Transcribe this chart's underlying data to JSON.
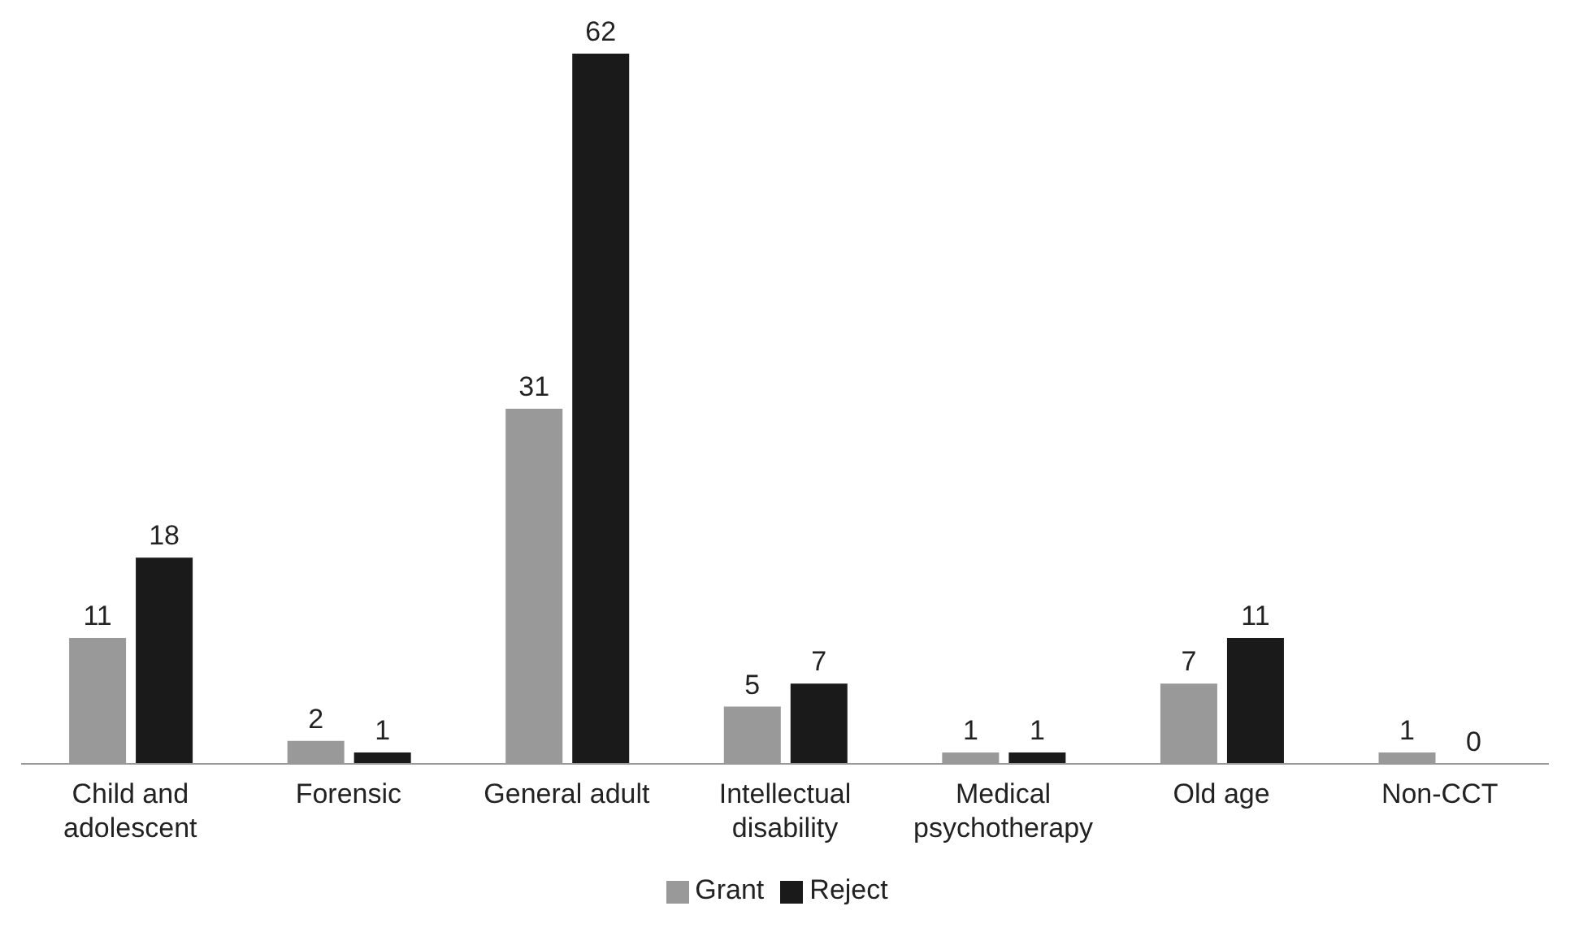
{
  "chart_data": {
    "type": "bar",
    "categories": [
      "Child and adolescent",
      "Forensic",
      "General adult",
      "Intellectual disability",
      "Medical psychotherapy",
      "Old age",
      "Non-CCT"
    ],
    "series": [
      {
        "name": "Grant",
        "color": "#999999",
        "values": [
          11,
          2,
          31,
          5,
          1,
          7,
          1
        ]
      },
      {
        "name": "Reject",
        "color": "#1a1a1a",
        "values": [
          18,
          1,
          62,
          7,
          1,
          11,
          0
        ]
      }
    ],
    "data_labels": true,
    "legend": "bottom",
    "grid": false
  }
}
